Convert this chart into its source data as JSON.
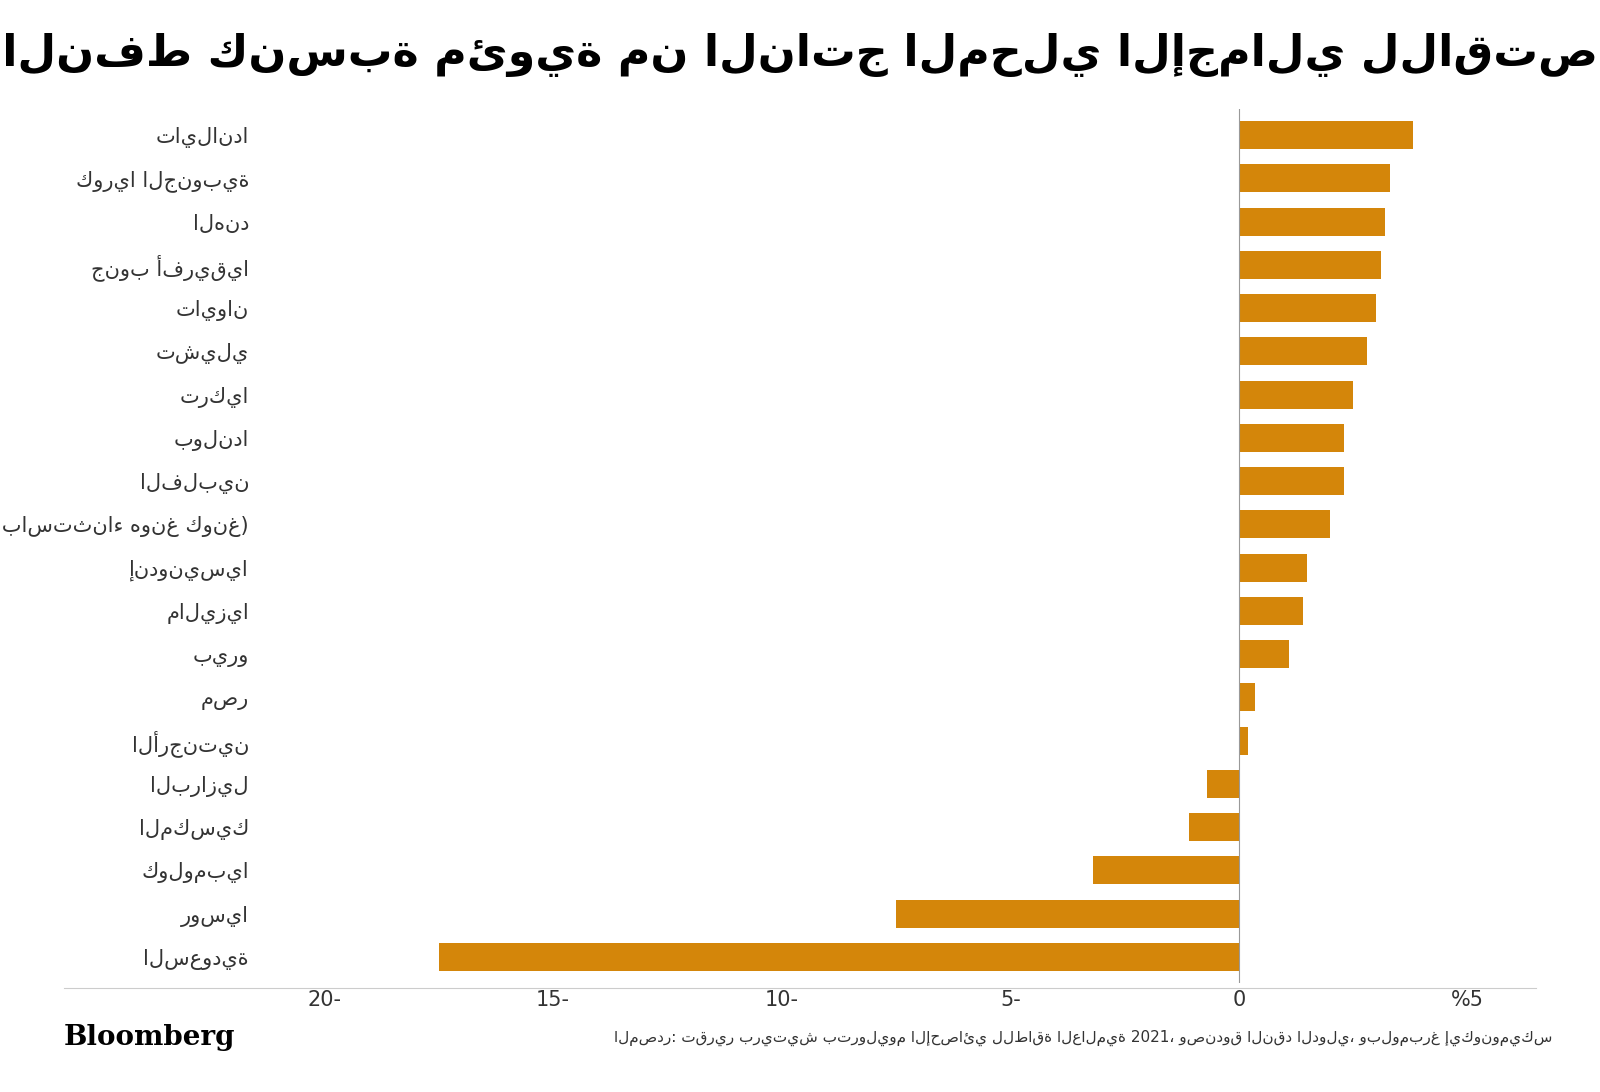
{
  "title": "صافي واردات النفط كنسبة مئوية من الناتج المحلي الإجمالي للاقتصادات الناشئة",
  "source_label": "المصدر: تقرير بريتيش بتروليوم الإحصائي للطاقة العالمية 2021، وصندوق النقد الدولي، وبلومبرغ إيكونوميكس",
  "bloomberg_label": "Bloomberg",
  "categories": [
    "تايلاندا",
    "كوريا الجنوبية",
    "الهند",
    "جنوب أفريقيا",
    "تايوان",
    "تشيلي",
    "تركيا",
    "بولندا",
    "الفلبين",
    "الصين (باستثناء هونغ كونغ)",
    "إندونيسيا",
    "ماليزيا",
    "بيرو",
    "مصر",
    "الأرجنتين",
    "البرازيل",
    "المكسيك",
    "كولومبيا",
    "روسيا",
    "السعودية"
  ],
  "values": [
    3.8,
    3.3,
    3.2,
    3.1,
    3.0,
    2.8,
    2.5,
    2.3,
    2.3,
    2.0,
    1.5,
    1.4,
    1.1,
    0.35,
    0.2,
    -0.7,
    -1.1,
    -3.2,
    -7.5,
    -17.5
  ],
  "bar_color": "#D4860A",
  "background_color": "#FFFFFF",
  "xlim": [
    -21.5,
    6.5
  ],
  "xtick_labels": [
    "20-",
    "15-",
    "10-",
    "5-",
    "0",
    "%5"
  ],
  "xtick_values": [
    -20,
    -15,
    -10,
    -5,
    0,
    5
  ],
  "title_fontsize": 32,
  "tick_fontsize": 15,
  "label_fontsize": 15
}
